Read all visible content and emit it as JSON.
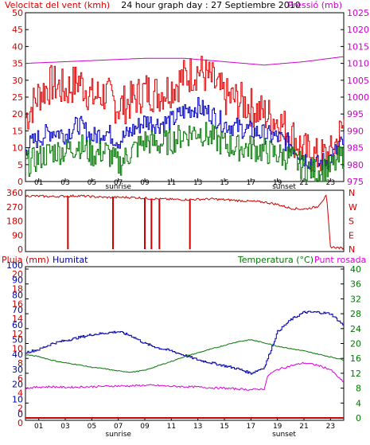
{
  "title": "24 hour graph day : 27 Septiembre 2010",
  "colors": {
    "wind": "#dd0000",
    "wind_low": "#007700",
    "wind_avg": "#0000bb",
    "pressure": "#cc00cc",
    "direction": "#cc0000",
    "rain": "#cc0000",
    "humidity": "#0000aa",
    "temperature": "#007700",
    "dewpoint": "#dd00dd",
    "frame": "#000000",
    "sunrise_sunset": "#000000"
  },
  "chart_data": [
    {
      "type": "line",
      "panel": "wind",
      "title": "24 hour graph day : 27 Septiembre 2010",
      "ylabel_left": "Velocitat del vent (kmh)",
      "ylabel_right": "Pressió (mb)",
      "x_ticks": [
        "01",
        "03",
        "05",
        "07",
        "09",
        "11",
        "13",
        "15",
        "17",
        "19",
        "21",
        "23"
      ],
      "y_left_ticks": [
        "0",
        "5",
        "10",
        "15",
        "20",
        "25",
        "30",
        "35",
        "40",
        "45",
        "50"
      ],
      "y_right_ticks": [
        "975",
        "980",
        "985",
        "990",
        "995",
        "1000",
        "1005",
        "1010",
        "1015",
        "1020",
        "1025"
      ],
      "ylim_left": [
        0,
        50
      ],
      "ylim_right": [
        975,
        1025
      ],
      "sunrise_label": "sunrise",
      "sunset_label": "sunset",
      "sunrise_hour": 7,
      "sunset_hour": 19.5,
      "series": [
        {
          "key": "gust",
          "x": [
            0,
            1,
            2,
            3,
            4,
            5,
            6,
            7,
            8,
            9,
            10,
            11,
            12,
            13,
            14,
            15,
            16,
            17,
            18,
            19,
            20,
            21,
            22,
            23,
            24
          ],
          "values": [
            19,
            26,
            29,
            27,
            30,
            25,
            26,
            22,
            24,
            27,
            26,
            28,
            31,
            33,
            30,
            25,
            24,
            22,
            20,
            18,
            14,
            9,
            7,
            8,
            17
          ]
        },
        {
          "key": "average",
          "x": [
            0,
            1,
            2,
            3,
            4,
            5,
            6,
            7,
            8,
            9,
            10,
            11,
            12,
            13,
            14,
            15,
            16,
            17,
            18,
            19,
            20,
            21,
            22,
            23,
            24
          ],
          "values": [
            10,
            13,
            15,
            14,
            17,
            13,
            15,
            12,
            15,
            18,
            17,
            18,
            21,
            22,
            20,
            17,
            16,
            15,
            14,
            13,
            11,
            7,
            5,
            7,
            12
          ]
        },
        {
          "key": "low",
          "x": [
            0,
            1,
            2,
            3,
            4,
            5,
            6,
            7,
            8,
            9,
            10,
            11,
            12,
            13,
            14,
            15,
            16,
            17,
            18,
            19,
            20,
            21,
            22,
            23,
            24
          ],
          "values": [
            5,
            7,
            9,
            9,
            11,
            8,
            9,
            5,
            9,
            12,
            11,
            12,
            14,
            15,
            13,
            11,
            10,
            10,
            9,
            8,
            7,
            4,
            3,
            4,
            8
          ]
        },
        {
          "key": "pressure",
          "axis": "right",
          "x": [
            0,
            3,
            6,
            9,
            12,
            15,
            18,
            21,
            24
          ],
          "values": [
            1010,
            1010.5,
            1011,
            1011.5,
            1011.5,
            1010.5,
            1009.5,
            1010.5,
            1012
          ]
        }
      ]
    },
    {
      "type": "line",
      "panel": "direction",
      "y_left_ticks": [
        "360",
        "270",
        "180",
        "90",
        "0"
      ],
      "y_right_ticks": [
        "N",
        "W",
        "S",
        "E",
        "N"
      ],
      "ylim": [
        0,
        360
      ],
      "series": [
        {
          "key": "direction",
          "x": [
            0,
            2,
            4,
            6,
            8,
            10,
            12,
            14,
            16,
            18,
            19,
            20,
            21,
            22,
            22.7,
            23,
            24
          ],
          "values": [
            340,
            335,
            340,
            330,
            330,
            320,
            315,
            320,
            310,
            300,
            285,
            260,
            255,
            270,
            340,
            15,
            5
          ]
        }
      ],
      "spikes_x": [
        3.2,
        6.6,
        9.0,
        9.5,
        10.1,
        12.4
      ]
    },
    {
      "type": "line",
      "panel": "temperature",
      "ylabel_left": "Pluja (mm)",
      "ylabel_left2": "Humitat",
      "ylabel_right": "Temperatura (°C)",
      "ylabel_right2": "Punt rosada",
      "x_ticks": [
        "01",
        "03",
        "05",
        "07",
        "09",
        "11",
        "13",
        "15",
        "17",
        "19",
        "21",
        "23"
      ],
      "y_left_ticks": [
        "0",
        "10",
        "20",
        "30",
        "40",
        "50",
        "60",
        "70",
        "80",
        "90",
        "100"
      ],
      "y_left2_ticks": [
        "0",
        "2",
        "4",
        "6",
        "8",
        "10",
        "12",
        "14",
        "16",
        "18",
        "20"
      ],
      "y_right_ticks": [
        "0",
        "4",
        "8",
        "12",
        "16",
        "20",
        "24",
        "28",
        "32",
        "36",
        "40"
      ],
      "ylim_left": [
        0,
        100
      ],
      "ylim_right": [
        0,
        40
      ],
      "sunrise_label": "sunrise",
      "sunset_label": "sunset",
      "series": [
        {
          "key": "humidity",
          "x": [
            0,
            1,
            2,
            3,
            4,
            5,
            6,
            7,
            8,
            9,
            10,
            11,
            12,
            13,
            14,
            15,
            16,
            17,
            18,
            18.5,
            19,
            20,
            21,
            22,
            23,
            24
          ],
          "values": [
            44,
            46,
            50,
            52,
            54,
            56,
            57,
            58,
            55,
            50,
            47,
            45,
            42,
            39,
            37,
            35,
            33,
            30,
            34,
            46,
            58,
            66,
            71,
            71,
            70,
            62
          ]
        },
        {
          "key": "temperature",
          "x": [
            0,
            1,
            2,
            3,
            4,
            5,
            6,
            7,
            8,
            9,
            10,
            11,
            12,
            13,
            14,
            15,
            16,
            17,
            18,
            19,
            20,
            21,
            22,
            23,
            24
          ],
          "values": [
            17,
            16.5,
            15.5,
            14.8,
            14.3,
            13.6,
            13.2,
            12.6,
            12.3,
            12.8,
            14,
            15.2,
            16.5,
            17.5,
            18.5,
            19.5,
            20.5,
            21,
            20.2,
            19.3,
            18.6,
            18,
            17.2,
            16.4,
            15.6
          ]
        },
        {
          "key": "dewpoint",
          "x": [
            0,
            1,
            2,
            3,
            4,
            5,
            6,
            7,
            8,
            9,
            10,
            11,
            12,
            13,
            14,
            15,
            16,
            17,
            18,
            18.3,
            19,
            20,
            21,
            22,
            23,
            24
          ],
          "values": [
            8,
            8.3,
            8.4,
            8.2,
            8.3,
            8.4,
            8.5,
            8.6,
            8.6,
            8.8,
            8.7,
            8.5,
            8.4,
            8.3,
            8.1,
            8,
            7.8,
            7.6,
            7.8,
            11.5,
            13,
            14,
            14.8,
            14.2,
            13,
            9.5
          ]
        },
        {
          "key": "rain",
          "x": [
            0,
            24
          ],
          "values": [
            0,
            0
          ]
        }
      ]
    }
  ]
}
